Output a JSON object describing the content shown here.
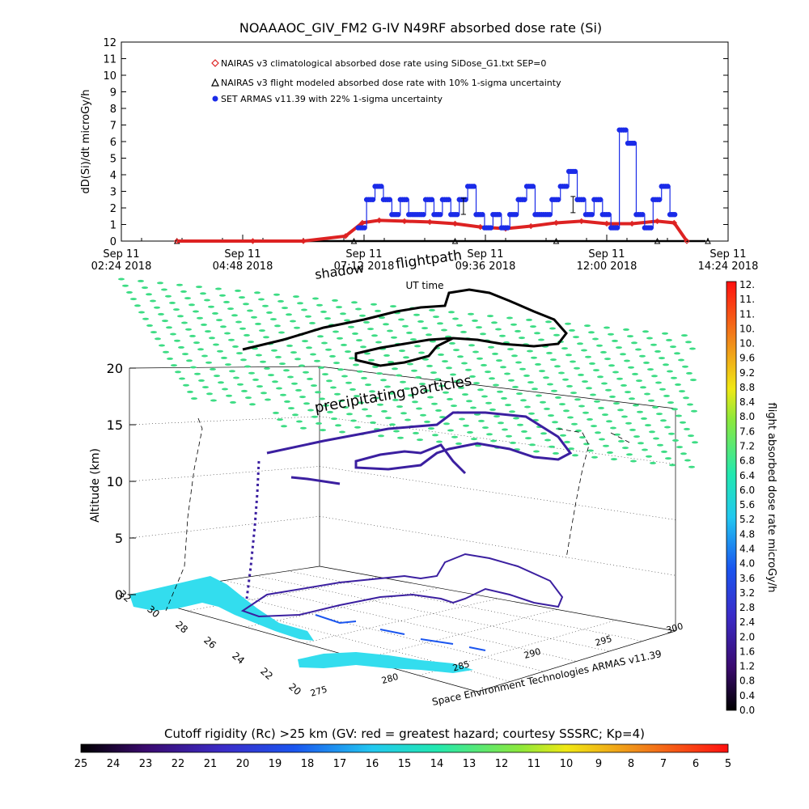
{
  "figure_title": "NOAAAOC_GIV_FM2 G-IV    N49RF   absorbed dose rate (Si)",
  "colors": {
    "nairas_clim": "#dd2222",
    "nairas_flight": "#000000",
    "armas": "#1a2be8",
    "particles": "#3ddc84",
    "land": "#33ddee",
    "track_top": "#000000",
    "track_mid": "#3b1fa0"
  },
  "chart_data": [
    {
      "type": "line",
      "title": "NOAAAOC_GIV_FM2 G-IV    N49RF   absorbed dose rate (Si)",
      "xlabel": "UT time",
      "ylabel": "dD(Si)/dt microGy/h",
      "ylim": [
        0,
        12
      ],
      "yticks": [
        "0",
        "1",
        "2",
        "3",
        "4",
        "5",
        "6",
        "7",
        "8",
        "9",
        "10",
        "11",
        "12"
      ],
      "xticks": [
        {
          "day": "Sep 11",
          "time": "02:24 2018"
        },
        {
          "day": "Sep 11",
          "time": "04:48 2018"
        },
        {
          "day": "Sep 11",
          "time": "07:12 2018"
        },
        {
          "day": "Sep 11",
          "time": "09:36 2018"
        },
        {
          "day": "Sep 11",
          "time": "12:00 2018"
        },
        {
          "day": "Sep 11",
          "time": "14:24 2018"
        }
      ],
      "legend": [
        {
          "marker": "◇",
          "label": "NAIRAS v3 climatological absorbed dose rate using SiDose_G1.txt SEP=0"
        },
        {
          "marker": "Δ",
          "label": "NAIRAS v3 flight modeled absorbed dose rate with 10% 1-sigma uncertainty"
        },
        {
          "marker": "●",
          "label": "SET ARMAS v11.39 with 22% 1-sigma uncertainty"
        }
      ],
      "legend_position": "top-left",
      "series": [
        {
          "name": "NAIRAS v3 climatological absorbed dose rate using SiDose_G1.txt SEP=0",
          "x": [
            "03:30",
            "05:00",
            "06:00",
            "06:50",
            "07:10",
            "07:30",
            "08:00",
            "08:30",
            "09:00",
            "09:30",
            "10:00",
            "10:30",
            "11:00",
            "11:30",
            "12:00",
            "12:30",
            "13:00",
            "13:20",
            "13:35"
          ],
          "y": [
            0,
            0,
            0,
            0.3,
            1.1,
            1.25,
            1.2,
            1.15,
            1.05,
            0.85,
            0.75,
            0.9,
            1.1,
            1.2,
            1.05,
            1.05,
            1.2,
            1.1,
            0
          ]
        },
        {
          "name": "NAIRAS v3 flight modeled absorbed dose rate with 10% 1-sigma uncertainty",
          "x": [
            "03:30",
            "07:00",
            "09:00",
            "11:00",
            "13:00",
            "14:00"
          ],
          "y": [
            0,
            0,
            0,
            0,
            0,
            0
          ]
        },
        {
          "name": "SET ARMAS v11.39 with 22% 1-sigma uncertainty",
          "x": [
            "07:05",
            "07:15",
            "07:25",
            "07:35",
            "07:45",
            "07:55",
            "08:05",
            "08:15",
            "08:25",
            "08:35",
            "08:45",
            "08:55",
            "09:05",
            "09:15",
            "09:25",
            "09:35",
            "09:45",
            "09:55",
            "10:05",
            "10:15",
            "10:25",
            "10:35",
            "10:45",
            "10:55",
            "11:05",
            "11:15",
            "11:25",
            "11:35",
            "11:45",
            "11:55",
            "12:05",
            "12:15",
            "12:25",
            "12:35",
            "12:45",
            "12:55",
            "13:05",
            "13:15"
          ],
          "y": [
            0.8,
            2.5,
            3.3,
            2.5,
            1.6,
            2.5,
            1.6,
            1.6,
            2.5,
            1.6,
            2.5,
            1.6,
            2.5,
            3.3,
            1.6,
            0.8,
            1.6,
            0.8,
            1.6,
            2.5,
            3.3,
            1.6,
            1.6,
            2.5,
            3.3,
            4.2,
            2.5,
            1.6,
            2.5,
            1.6,
            0.8,
            6.7,
            5.9,
            1.6,
            0.8,
            2.5,
            3.3,
            1.6
          ]
        }
      ],
      "error_bars": [
        {
          "x": "09:10",
          "y": 2.1
        },
        {
          "x": "11:20",
          "y": 2.2
        }
      ]
    },
    {
      "type": "scatter",
      "title": "Space Environment Technologies ARMAS v11.39",
      "zlabel": "Altitude (km)",
      "zlim": [
        0,
        20
      ],
      "zticks": [
        "0",
        "5",
        "10",
        "15",
        "20"
      ],
      "latitude_ticks": [
        "32",
        "30",
        "28",
        "26",
        "24",
        "22",
        "20"
      ],
      "longitude_ticks": [
        "275",
        "280",
        "285",
        "290",
        "295",
        "300"
      ],
      "annotations": [
        "shadow",
        "flightpath",
        "precipitating particles",
        "UT time"
      ],
      "colorbar": {
        "label": "flight absorbed dose rate microGy/h",
        "ticks": [
          "0.0",
          "0.4",
          "0.8",
          "1.2",
          "1.6",
          "2.0",
          "2.4",
          "2.8",
          "3.2",
          "3.6",
          "4.0",
          "4.4",
          "4.8",
          "5.2",
          "5.6",
          "6.0",
          "6.4",
          "6.8",
          "7.2",
          "7.6",
          "8.0",
          "8.4",
          "8.8",
          "9.2",
          "9.6",
          "10.",
          "10.",
          "11.",
          "11.",
          "12."
        ]
      }
    },
    {
      "type": "heatmap",
      "title": "Cutoff rigidity (Rc) >25 km (GV: red = greatest hazard; courtesy SSSRC; Kp=4)",
      "ticks": [
        "25",
        "24",
        "23",
        "22",
        "21",
        "20",
        "19",
        "18",
        "17",
        "16",
        "15",
        "14",
        "13",
        "12",
        "11",
        "10",
        "9",
        "8",
        "7",
        "6",
        "5"
      ]
    }
  ],
  "watermark": {
    "overlap_text": "07:12 2018",
    "shadow_text": "shadow",
    "flightpath_text": "flightpath"
  }
}
